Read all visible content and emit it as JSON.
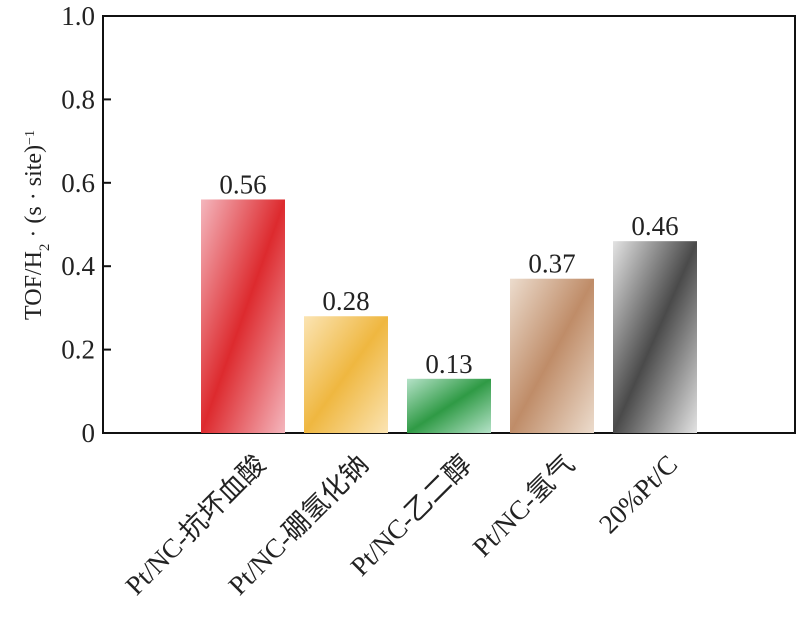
{
  "chart_data": {
    "type": "bar",
    "categories": [
      "Pt/NC-抗坏血酸",
      "Pt/NC-硼氢化钠",
      "Pt/NC-乙二醇",
      "Pt/NC-氢气",
      "20%Pt/C"
    ],
    "values": [
      0.56,
      0.28,
      0.13,
      0.37,
      0.46
    ],
    "data_labels": [
      "0.56",
      "0.28",
      "0.13",
      "0.37",
      "0.46"
    ],
    "ylim": [
      0,
      1.0
    ],
    "yticks": [
      0,
      0.2,
      0.4,
      0.6,
      0.8,
      1.0
    ],
    "ytick_labels": [
      "0",
      "0.2",
      "0.4",
      "0.6",
      "0.8",
      "1.0"
    ],
    "ylabel": {
      "prefix": "TOF/H",
      "subscript": "2",
      "middle": " · (s · site)",
      "superscript": "−1"
    },
    "xlabel": "",
    "grid": false,
    "bar_gradients": [
      {
        "light": "#f4b6bd",
        "dark": "#dd2a2e"
      },
      {
        "light": "#fbe4b3",
        "dark": "#efb740"
      },
      {
        "light": "#b5e2c8",
        "dark": "#2f9a45"
      },
      {
        "light": "#ecdccd",
        "dark": "#bf8c68"
      },
      {
        "light": "#e3e3e3",
        "dark": "#4a4a4a"
      }
    ]
  }
}
